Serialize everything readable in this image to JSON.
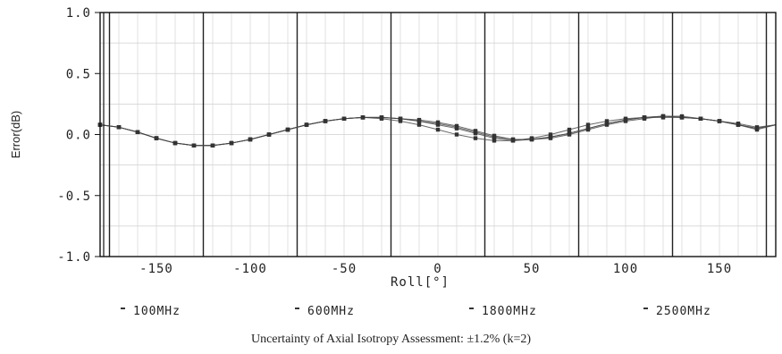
{
  "chart_data": {
    "type": "line",
    "title": "",
    "xlabel": "Roll[°]",
    "ylabel": "Error(dB)",
    "xlim": [
      -180,
      180
    ],
    "ylim": [
      -1.0,
      1.0
    ],
    "xticks": [
      "-150",
      "-100",
      "-50",
      "0",
      "50",
      "100",
      "150"
    ],
    "yticks": [
      "1.0",
      "0.5",
      "0.0",
      "-0.5",
      "-1.0"
    ],
    "grid": true,
    "legend_position": "bottom",
    "x": [
      -180,
      -170,
      -160,
      -150,
      -140,
      -130,
      -120,
      -110,
      -100,
      -90,
      -80,
      -70,
      -60,
      -50,
      -40,
      -30,
      -20,
      -10,
      0,
      10,
      20,
      30,
      40,
      50,
      60,
      70,
      80,
      90,
      100,
      110,
      120,
      130,
      140,
      150,
      160,
      170,
      180
    ],
    "series": [
      {
        "name": "100MHz",
        "values": [
          0.08,
          0.06,
          0.02,
          -0.03,
          -0.07,
          -0.09,
          -0.09,
          -0.07,
          -0.04,
          0.0,
          0.04,
          0.08,
          0.11,
          0.13,
          0.14,
          0.13,
          0.11,
          0.08,
          0.04,
          0.0,
          -0.03,
          -0.05,
          -0.05,
          -0.03,
          0.0,
          0.04,
          0.08,
          0.11,
          0.13,
          0.14,
          0.14,
          0.14,
          0.13,
          0.11,
          0.08,
          0.04,
          0.08
        ]
      },
      {
        "name": "600MHz",
        "values": [
          0.08,
          0.06,
          0.02,
          -0.03,
          -0.07,
          -0.09,
          -0.09,
          -0.07,
          -0.04,
          0.0,
          0.04,
          0.08,
          0.11,
          0.13,
          0.14,
          0.14,
          0.13,
          0.11,
          0.08,
          0.05,
          0.01,
          -0.03,
          -0.05,
          -0.04,
          -0.02,
          0.01,
          0.05,
          0.09,
          0.12,
          0.14,
          0.15,
          0.14,
          0.13,
          0.11,
          0.08,
          0.05,
          0.08
        ]
      },
      {
        "name": "1800MHz",
        "values": [
          0.08,
          0.06,
          0.02,
          -0.03,
          -0.07,
          -0.09,
          -0.09,
          -0.07,
          -0.04,
          0.0,
          0.04,
          0.08,
          0.11,
          0.13,
          0.14,
          0.14,
          0.13,
          0.11,
          0.09,
          0.06,
          0.02,
          -0.02,
          -0.04,
          -0.04,
          -0.02,
          0.01,
          0.05,
          0.09,
          0.12,
          0.14,
          0.15,
          0.14,
          0.13,
          0.11,
          0.08,
          0.05,
          0.08
        ]
      },
      {
        "name": "2500MHz",
        "values": [
          0.08,
          0.06,
          0.02,
          -0.03,
          -0.07,
          -0.09,
          -0.09,
          -0.07,
          -0.04,
          0.0,
          0.04,
          0.08,
          0.11,
          0.13,
          0.14,
          0.14,
          0.13,
          0.12,
          0.1,
          0.07,
          0.03,
          -0.01,
          -0.04,
          -0.04,
          -0.03,
          0.0,
          0.04,
          0.08,
          0.11,
          0.13,
          0.15,
          0.15,
          0.13,
          0.11,
          0.09,
          0.06,
          0.08
        ]
      }
    ]
  },
  "note": "Uncertainty of Axial Isotropy Assessment: ±1.2% (k=2)",
  "colors": {
    "line": "#444444",
    "grid_major": "#222222",
    "grid_minor": "#cfcfcf"
  }
}
